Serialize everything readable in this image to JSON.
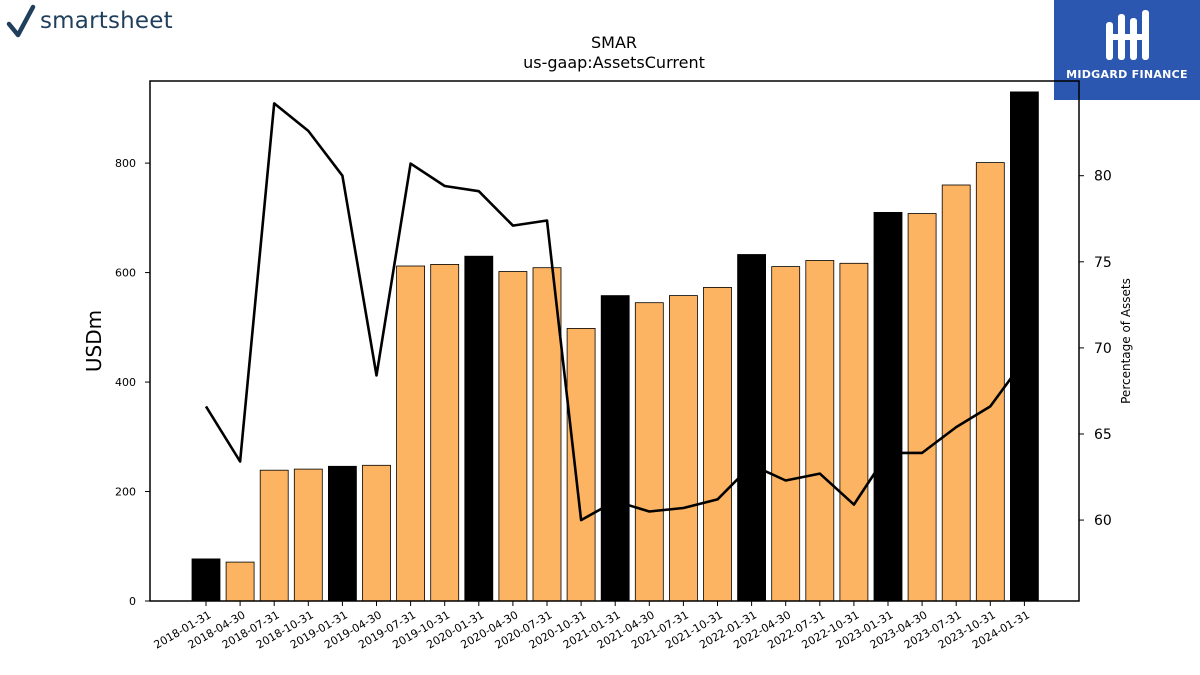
{
  "branding": {
    "left_logo_text": "smartsheet",
    "left_logo_icon": "checkmark-icon",
    "right_logo_text": "MIDGARD FINANCE",
    "right_logo_bg": "#2c57b0"
  },
  "chart_data": {
    "type": "bar",
    "title": "SMAR",
    "subtitle": "us-gaap:AssetsCurrent",
    "ylabel": "USDm",
    "y2label": "Percentage of Assets",
    "categories": [
      "2018-01-31",
      "2018-04-30",
      "2018-07-31",
      "2018-10-31",
      "2019-01-31",
      "2019-04-30",
      "2019-07-31",
      "2019-10-31",
      "2020-01-31",
      "2020-04-30",
      "2020-07-31",
      "2020-10-31",
      "2021-01-31",
      "2021-04-30",
      "2021-07-31",
      "2021-10-31",
      "2022-01-31",
      "2022-04-30",
      "2022-07-31",
      "2022-10-31",
      "2023-01-31",
      "2023-04-30",
      "2023-07-31",
      "2023-10-31",
      "2024-01-31"
    ],
    "series": [
      {
        "values": [
          77,
          71,
          239,
          241,
          246,
          248,
          612,
          615,
          630,
          602,
          609,
          498,
          558,
          545,
          558,
          573,
          633,
          611,
          622,
          617,
          710,
          708,
          760,
          801,
          930
        ],
        "fiscal_year_end": [
          true,
          false,
          false,
          false,
          true,
          false,
          false,
          false,
          true,
          false,
          false,
          false,
          true,
          false,
          false,
          false,
          true,
          false,
          false,
          false,
          true,
          false,
          false,
          false,
          true
        ]
      },
      {
        "axis": "right",
        "type": "line",
        "values": [
          66.6,
          63.4,
          84.2,
          82.6,
          80.0,
          68.4,
          80.7,
          79.4,
          79.1,
          77.1,
          77.4,
          60.0,
          61.1,
          60.5,
          60.7,
          61.2,
          63.2,
          62.3,
          62.7,
          60.9,
          63.9,
          63.9,
          65.4,
          66.6,
          69.3
        ]
      }
    ],
    "ylim": [
      0,
      950
    ],
    "y2lim": [
      55.3,
      85.5
    ],
    "yticks": [
      0,
      200,
      400,
      600,
      800
    ],
    "y2ticks": [
      60,
      65,
      70,
      75,
      80
    ],
    "colors": {
      "bar_regular": "#fdb462",
      "bar_fiscal_year_end": "#000000",
      "line": "#000000"
    },
    "grid": false,
    "legend": "none"
  }
}
